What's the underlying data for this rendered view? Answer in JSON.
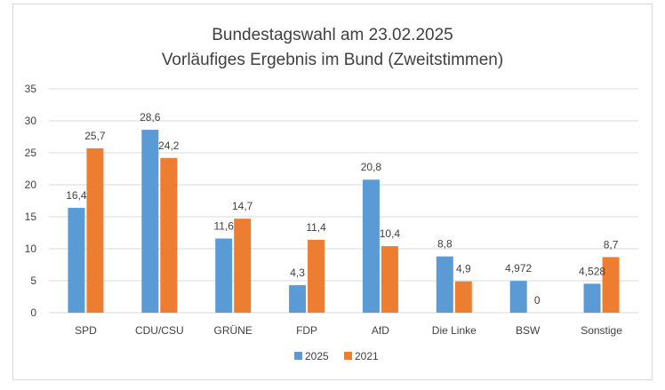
{
  "chart_data": {
    "type": "bar",
    "title": "Bundestagswahl am 23.02.2025",
    "subtitle": "Vorläufiges Ergebnis im Bund (Zweitstimmen)",
    "categories": [
      "SPD",
      "CDU/CSU",
      "GRÜNE",
      "FDP",
      "AfD",
      "Die Linke",
      "BSW",
      "Sonstige"
    ],
    "series": [
      {
        "name": "2025",
        "color": "#5b9bd5",
        "values": [
          16.4,
          28.6,
          11.6,
          4.3,
          20.8,
          8.8,
          4.972,
          4.528
        ],
        "labels": [
          "16,4",
          "28,6",
          "11,6",
          "4,3",
          "20,8",
          "8,8",
          "4,972",
          "4,528"
        ]
      },
      {
        "name": "2021",
        "color": "#ed7d31",
        "values": [
          25.7,
          24.2,
          14.7,
          11.4,
          10.4,
          4.9,
          0,
          8.7
        ],
        "labels": [
          "25,7",
          "24,2",
          "14,7",
          "11,4",
          "10,4",
          "4,9",
          "0",
          "8,7"
        ]
      }
    ],
    "ylim": [
      0,
      35
    ],
    "yticks": [
      "0",
      "5",
      "10",
      "15",
      "20",
      "25",
      "30",
      "35"
    ],
    "grid": true,
    "legend_position": "bottom"
  }
}
